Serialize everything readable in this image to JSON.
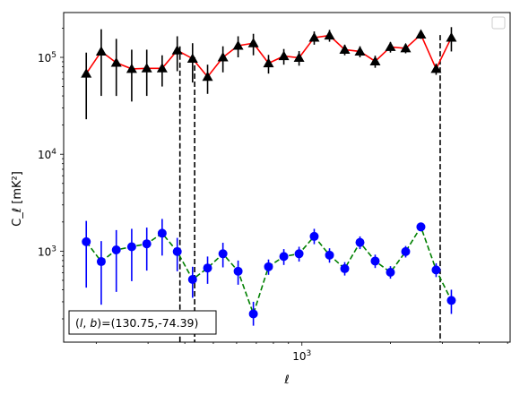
{
  "chart_data": {
    "type": "scatter",
    "title": "",
    "xlabel": "ℓ",
    "ylabel": "C_ℓ  [mK²]",
    "xscale": "log",
    "yscale": "log",
    "xlim": [
      155,
      5100
    ],
    "ylim": [
      115,
      290000
    ],
    "grid": false,
    "legend_placement": "top-right",
    "x_major_tick": {
      "value": 1000,
      "base": "10",
      "exponent": "3"
    },
    "y_major_ticks": [
      {
        "value": 1000,
        "base": "10",
        "exponent": "3"
      },
      {
        "value": 10000,
        "base": "10",
        "exponent": "4"
      },
      {
        "value": 100000,
        "base": "10",
        "exponent": "5"
      }
    ],
    "vertical_lines": [
      {
        "x": 385,
        "style": "dashed",
        "color": "#000000",
        "y_top": 130000
      },
      {
        "x": 432,
        "style": "dashed",
        "color": "#000000",
        "y_top": 100000
      },
      {
        "x": 2950,
        "style": "dashed",
        "color": "#000000",
        "y_top": 170000
      }
    ],
    "annotation": {
      "prefix": "(l, b)=",
      "text": "(130.75,-74.39)"
    },
    "series": [
      {
        "marker": "triangle",
        "marker_color": "#000000",
        "line_color": "#ff0000",
        "line_style": "solid",
        "points": [
          {
            "x": 185,
            "y": 68000,
            "lo": 23000,
            "hi": 112000
          },
          {
            "x": 208,
            "y": 115000,
            "lo": 40000,
            "hi": 195000
          },
          {
            "x": 234,
            "y": 88000,
            "lo": 40000,
            "hi": 155000
          },
          {
            "x": 264,
            "y": 76000,
            "lo": 35000,
            "hi": 120000
          },
          {
            "x": 297,
            "y": 77000,
            "lo": 40000,
            "hi": 120000
          },
          {
            "x": 335,
            "y": 77000,
            "lo": 50000,
            "hi": 105000
          },
          {
            "x": 377,
            "y": 118000,
            "lo": 72000,
            "hi": 165000
          },
          {
            "x": 425,
            "y": 97000,
            "lo": 55000,
            "hi": 140000
          },
          {
            "x": 478,
            "y": 63000,
            "lo": 42000,
            "hi": 84000
          },
          {
            "x": 539,
            "y": 100000,
            "lo": 70000,
            "hi": 130000
          },
          {
            "x": 607,
            "y": 132000,
            "lo": 100000,
            "hi": 165000
          },
          {
            "x": 684,
            "y": 140000,
            "lo": 105000,
            "hi": 175000
          },
          {
            "x": 770,
            "y": 87000,
            "lo": 68000,
            "hi": 106000
          },
          {
            "x": 868,
            "y": 103000,
            "lo": 84000,
            "hi": 122000
          },
          {
            "x": 978,
            "y": 99000,
            "lo": 82000,
            "hi": 116000
          },
          {
            "x": 1101,
            "y": 160000,
            "lo": 135000,
            "hi": 185000
          },
          {
            "x": 1241,
            "y": 168000,
            "lo": 145000,
            "hi": 192000
          },
          {
            "x": 1398,
            "y": 120000,
            "lo": 105000,
            "hi": 135000
          },
          {
            "x": 1575,
            "y": 115000,
            "lo": 100000,
            "hi": 130000
          },
          {
            "x": 1774,
            "y": 91000,
            "lo": 78000,
            "hi": 104000
          },
          {
            "x": 1999,
            "y": 128000,
            "lo": 112000,
            "hi": 144000
          },
          {
            "x": 2252,
            "y": 124000,
            "lo": 110000,
            "hi": 138000
          },
          {
            "x": 2537,
            "y": 172000,
            "lo": 155000,
            "hi": 189000
          },
          {
            "x": 2858,
            "y": 76000,
            "lo": 66000,
            "hi": 86000
          },
          {
            "x": 3220,
            "y": 160000,
            "lo": 115000,
            "hi": 205000
          }
        ]
      },
      {
        "marker": "circle",
        "marker_color": "#0000ff",
        "line_color": "#008000",
        "line_style": "dashed",
        "points": [
          {
            "x": 185,
            "y": 1250,
            "lo": 420,
            "hi": 2050
          },
          {
            "x": 208,
            "y": 780,
            "lo": 280,
            "hi": 1270
          },
          {
            "x": 234,
            "y": 1030,
            "lo": 380,
            "hi": 1650
          },
          {
            "x": 264,
            "y": 1110,
            "lo": 490,
            "hi": 1700
          },
          {
            "x": 297,
            "y": 1190,
            "lo": 630,
            "hi": 1750
          },
          {
            "x": 335,
            "y": 1530,
            "lo": 900,
            "hi": 2150
          },
          {
            "x": 377,
            "y": 990,
            "lo": 620,
            "hi": 1370
          },
          {
            "x": 425,
            "y": 510,
            "lo": 330,
            "hi": 690
          },
          {
            "x": 478,
            "y": 670,
            "lo": 460,
            "hi": 880
          },
          {
            "x": 539,
            "y": 940,
            "lo": 680,
            "hi": 1220
          },
          {
            "x": 607,
            "y": 620,
            "lo": 450,
            "hi": 800
          },
          {
            "x": 684,
            "y": 225,
            "lo": 170,
            "hi": 300
          },
          {
            "x": 770,
            "y": 690,
            "lo": 570,
            "hi": 820
          },
          {
            "x": 868,
            "y": 880,
            "lo": 720,
            "hi": 1050
          },
          {
            "x": 978,
            "y": 940,
            "lo": 780,
            "hi": 1110
          },
          {
            "x": 1101,
            "y": 1420,
            "lo": 1180,
            "hi": 1700
          },
          {
            "x": 1241,
            "y": 910,
            "lo": 760,
            "hi": 1070
          },
          {
            "x": 1398,
            "y": 660,
            "lo": 560,
            "hi": 770
          },
          {
            "x": 1575,
            "y": 1230,
            "lo": 1050,
            "hi": 1420
          },
          {
            "x": 1774,
            "y": 790,
            "lo": 670,
            "hi": 920
          },
          {
            "x": 1999,
            "y": 605,
            "lo": 520,
            "hi": 700
          },
          {
            "x": 2252,
            "y": 990,
            "lo": 860,
            "hi": 1130
          },
          {
            "x": 2537,
            "y": 1780,
            "lo": 1600,
            "hi": 1970
          },
          {
            "x": 2858,
            "y": 640,
            "lo": 540,
            "hi": 750
          },
          {
            "x": 3220,
            "y": 310,
            "lo": 225,
            "hi": 400
          }
        ]
      }
    ]
  }
}
